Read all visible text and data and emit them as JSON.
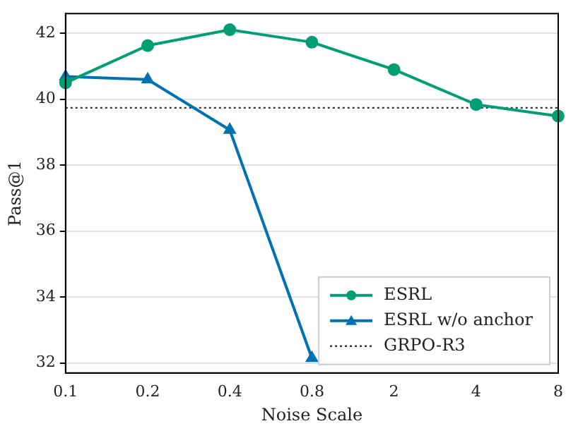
{
  "chart_data": {
    "type": "line",
    "xlabel": "Noise Scale",
    "ylabel": "Pass@1",
    "categories": [
      "0.1",
      "0.2",
      "0.4",
      "0.8",
      "2",
      "4",
      "8"
    ],
    "series": [
      {
        "name": "ESRL",
        "color": "#009e73",
        "marker": "circle",
        "values": [
          40.5,
          41.63,
          42.11,
          41.73,
          40.9,
          39.84,
          39.49
        ]
      },
      {
        "name": "ESRL w/o anchor",
        "color": "#0072b2",
        "marker": "triangle",
        "values": [
          40.69,
          40.6,
          39.07,
          32.15,
          null,
          null,
          null
        ]
      }
    ],
    "ref_lines": [
      {
        "axis": "y",
        "value": 39.74,
        "label": "GRPO-R3",
        "color": "#333333",
        "line_style": "dotted"
      }
    ],
    "ylim": [
      31.7,
      42.6
    ],
    "yticks": [
      32,
      34,
      36,
      38,
      40,
      42
    ],
    "grid": "y",
    "legend": "bottom right"
  }
}
